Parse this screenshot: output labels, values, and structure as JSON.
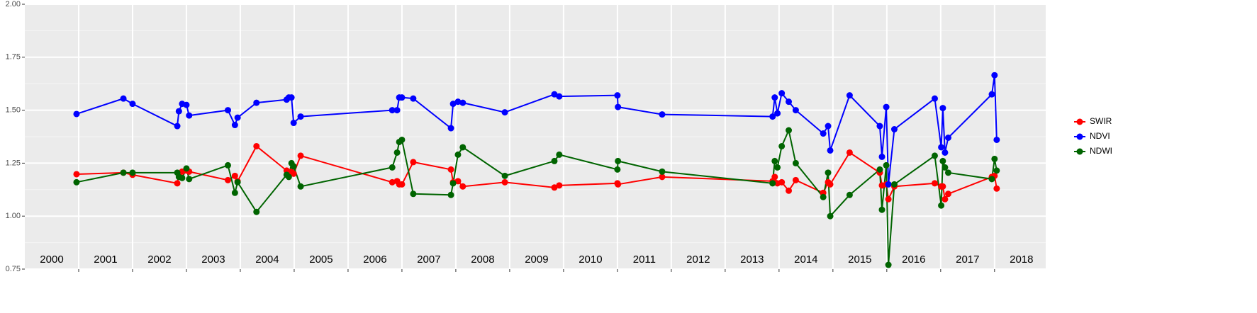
{
  "chart_data": {
    "type": "line",
    "x": [
      2000.96,
      2001.83,
      2002.0,
      2002.83,
      2002.86,
      2002.92,
      2003.0,
      2003.05,
      2003.77,
      2003.9,
      2003.95,
      2004.3,
      2004.86,
      2004.9,
      2004.95,
      2004.99,
      2005.12,
      2006.82,
      2006.91,
      2006.95,
      2007.0,
      2007.21,
      2007.91,
      2007.95,
      2008.04,
      2008.13,
      2008.91,
      2009.83,
      2009.92,
      2011.0,
      2011.01,
      2011.83,
      2013.88,
      2013.92,
      2013.97,
      2014.05,
      2014.18,
      2014.31,
      2014.82,
      2014.91,
      2014.95,
      2015.31,
      2015.87,
      2015.91,
      2015.99,
      2016.03,
      2016.14,
      2016.89,
      2017.01,
      2017.04,
      2017.08,
      2017.14,
      2017.95,
      2018.0,
      2018.04
    ],
    "series": [
      {
        "name": "SWIR",
        "color": "#ff0000",
        "values": [
          1.198,
          1.205,
          1.195,
          1.155,
          1.2,
          1.21,
          1.215,
          1.21,
          1.17,
          1.19,
          1.165,
          1.33,
          1.215,
          1.2,
          1.21,
          1.2,
          1.285,
          1.16,
          1.165,
          1.15,
          1.15,
          1.255,
          1.22,
          1.16,
          1.165,
          1.14,
          1.16,
          1.135,
          1.145,
          1.155,
          1.15,
          1.185,
          1.165,
          1.185,
          1.155,
          1.16,
          1.12,
          1.17,
          1.11,
          1.16,
          1.15,
          1.3,
          1.205,
          1.145,
          1.15,
          1.08,
          1.14,
          1.155,
          1.14,
          1.14,
          1.08,
          1.105,
          1.185,
          1.19,
          1.13
        ]
      },
      {
        "name": "NDVI",
        "color": "#0000ff",
        "values": [
          1.482,
          1.555,
          1.53,
          1.425,
          1.495,
          1.53,
          1.525,
          1.475,
          1.5,
          1.43,
          1.465,
          1.535,
          1.55,
          1.56,
          1.56,
          1.44,
          1.47,
          1.5,
          1.5,
          1.56,
          1.56,
          1.555,
          1.415,
          1.53,
          1.54,
          1.535,
          1.49,
          1.575,
          1.565,
          1.57,
          1.515,
          1.48,
          1.47,
          1.56,
          1.485,
          1.58,
          1.54,
          1.5,
          1.39,
          1.425,
          1.31,
          1.57,
          1.425,
          1.28,
          1.515,
          1.15,
          1.41,
          1.555,
          1.325,
          1.51,
          1.3,
          1.37,
          1.575,
          1.665,
          1.36
        ]
      },
      {
        "name": "NDWI",
        "color": "#006400",
        "values": [
          1.16,
          1.205,
          1.205,
          1.205,
          1.185,
          1.18,
          1.225,
          1.175,
          1.24,
          1.11,
          1.16,
          1.02,
          1.195,
          1.185,
          1.25,
          1.235,
          1.14,
          1.23,
          1.3,
          1.35,
          1.36,
          1.105,
          1.1,
          1.155,
          1.29,
          1.325,
          1.19,
          1.26,
          1.29,
          1.22,
          1.26,
          1.21,
          1.155,
          1.26,
          1.23,
          1.33,
          1.405,
          1.25,
          1.09,
          1.205,
          1.0,
          1.1,
          1.22,
          1.03,
          1.24,
          0.77,
          1.15,
          1.285,
          1.05,
          1.26,
          1.23,
          1.205,
          1.175,
          1.27,
          1.215
        ]
      }
    ],
    "xlim": [
      2000,
      2018.95
    ],
    "xticks": [
      2001,
      2002,
      2003,
      2004,
      2005,
      2006,
      2007,
      2008,
      2009,
      2010,
      2011,
      2012,
      2013,
      2014,
      2015,
      2016,
      2017,
      2018
    ],
    "ylim": [
      0.75,
      2.0
    ],
    "yticks": [
      {
        "value": 0.75,
        "label": "0.75"
      },
      {
        "value": 1.0,
        "label": "1.00"
      },
      {
        "value": 1.25,
        "label": "1.25"
      },
      {
        "value": 1.5,
        "label": "1.50"
      },
      {
        "value": 1.75,
        "label": "1.75"
      },
      {
        "value": 2.0,
        "label": "2.00"
      }
    ],
    "grid": true,
    "legend": "right",
    "annotations": [
      {
        "x": 2000.5,
        "label": "2000"
      },
      {
        "x": 2001.5,
        "label": "2001"
      },
      {
        "x": 2002.5,
        "label": "2002"
      },
      {
        "x": 2003.5,
        "label": "2003"
      },
      {
        "x": 2004.5,
        "label": "2004"
      },
      {
        "x": 2005.5,
        "label": "2005"
      },
      {
        "x": 2006.5,
        "label": "2006"
      },
      {
        "x": 2007.5,
        "label": "2007"
      },
      {
        "x": 2008.5,
        "label": "2008"
      },
      {
        "x": 2009.5,
        "label": "2009"
      },
      {
        "x": 2010.5,
        "label": "2010"
      },
      {
        "x": 2011.5,
        "label": "2011"
      },
      {
        "x": 2012.5,
        "label": "2012"
      },
      {
        "x": 2013.5,
        "label": "2013"
      },
      {
        "x": 2014.5,
        "label": "2014"
      },
      {
        "x": 2015.5,
        "label": "2015"
      },
      {
        "x": 2016.5,
        "label": "2016"
      },
      {
        "x": 2017.5,
        "label": "2017"
      },
      {
        "x": 2018.5,
        "label": "2018"
      }
    ]
  }
}
